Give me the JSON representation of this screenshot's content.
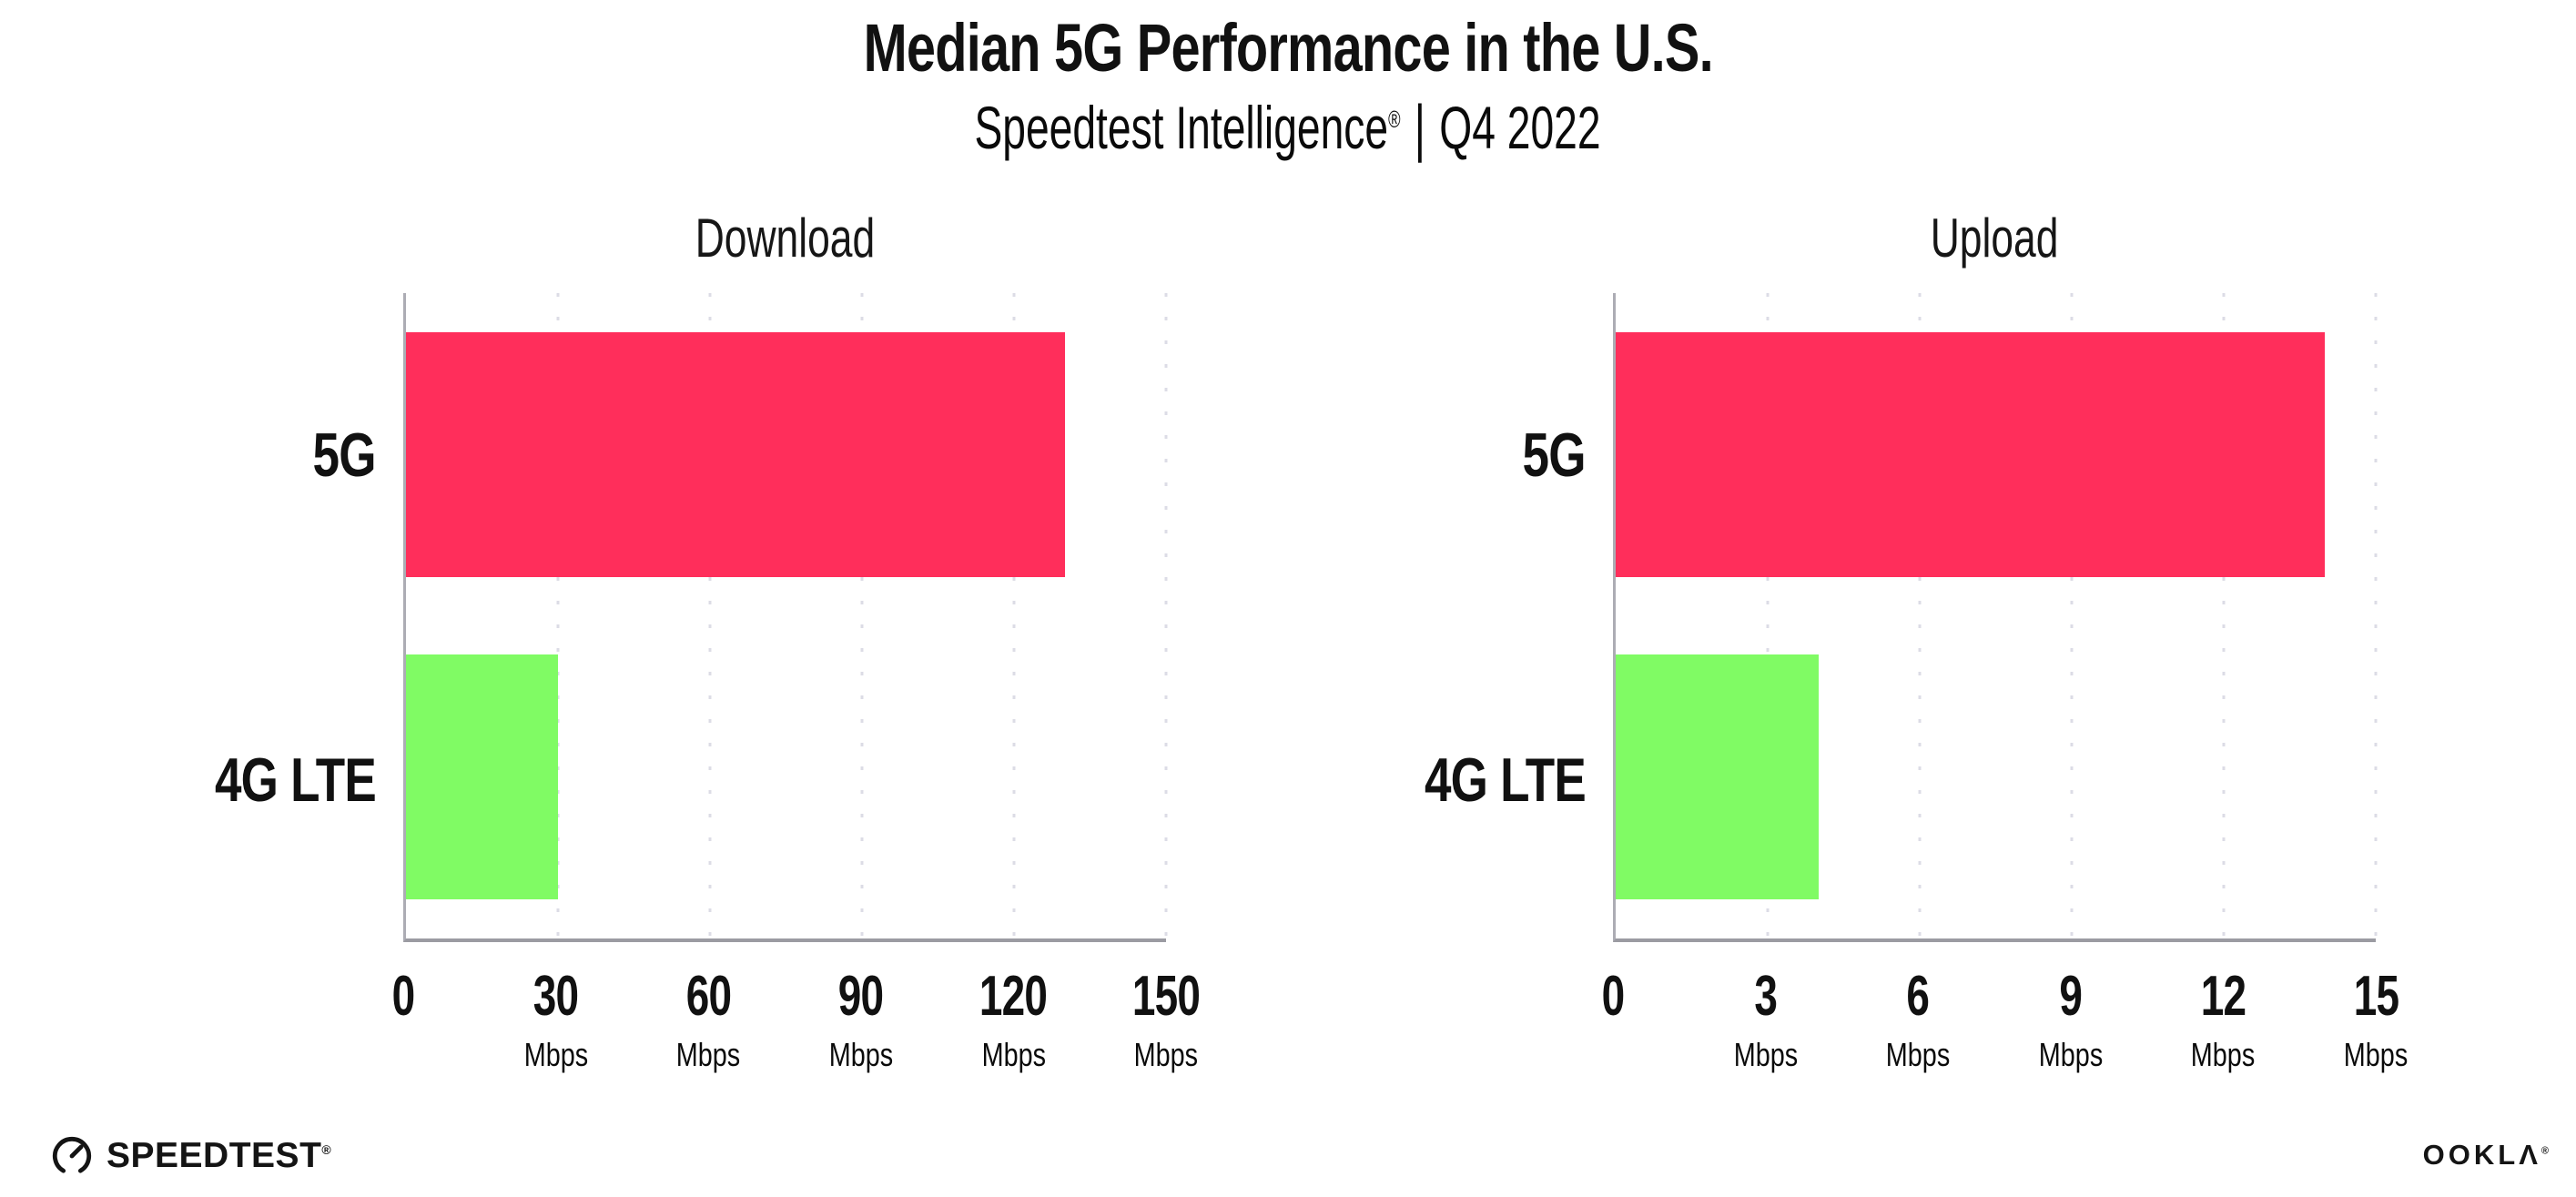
{
  "header": {
    "title": "Median 5G Performance in the U.S.",
    "subtitle_brand": "Speedtest Intelligence",
    "subtitle_reg": "®",
    "subtitle_separator": "|",
    "subtitle_period": "Q4 2022"
  },
  "chart_data": [
    {
      "type": "bar",
      "orientation": "horizontal",
      "title": "Download",
      "categories": [
        "5G",
        "4G LTE"
      ],
      "values": [
        130,
        30
      ],
      "unit": "Mbps",
      "xlim": [
        0,
        150
      ],
      "xticks": [
        0,
        30,
        60,
        90,
        120,
        150
      ],
      "bar_colors": [
        "#FF2E5B",
        "#80FB64"
      ],
      "grid": "vertical-dotted",
      "legend": "none"
    },
    {
      "type": "bar",
      "orientation": "horizontal",
      "title": "Upload",
      "categories": [
        "5G",
        "4G LTE"
      ],
      "values": [
        14,
        4
      ],
      "unit": "Mbps",
      "xlim": [
        0,
        15
      ],
      "xticks": [
        0,
        3,
        6,
        9,
        12,
        15
      ],
      "bar_colors": [
        "#FF2E5B",
        "#80FB64"
      ],
      "grid": "vertical-dotted",
      "legend": "none"
    }
  ],
  "footer": {
    "speedtest_label": "SPEEDTEST",
    "speedtest_reg": "®",
    "ookla_label": "OOKLΛ",
    "ookla_reg": "®"
  },
  "colors": {
    "bar_5g": "#FF2E5B",
    "bar_4g_lte": "#80FB64",
    "axis": "#9B9BA2",
    "gridline": "#DCDCE6",
    "text": "#111111",
    "background": "#FFFFFF"
  }
}
